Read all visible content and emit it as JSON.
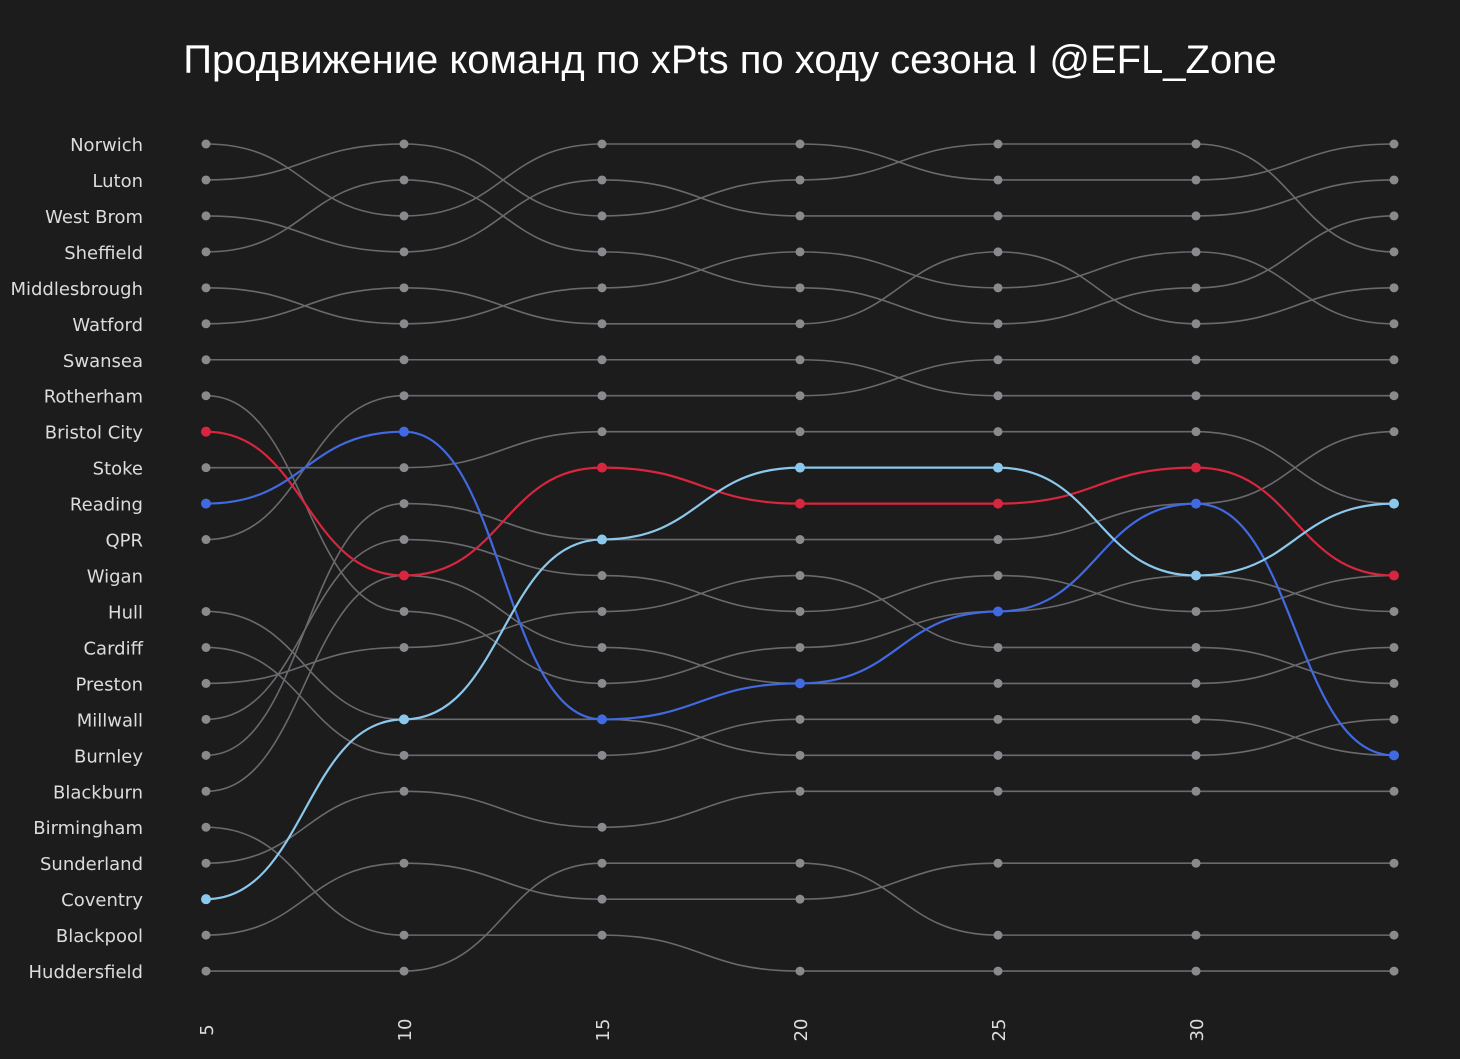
{
  "chart_data": {
    "type": "line",
    "title": "Продвижение команд по xPts по ходу сезона I @EFL_Zone",
    "x": [
      5,
      10,
      15,
      20,
      25,
      30,
      34
    ],
    "x_tick_labels": [
      "5",
      "10",
      "15",
      "20",
      "25",
      "30"
    ],
    "y_category_labels": [
      "Norwich",
      "Luton",
      "West Brom",
      "Sheffield",
      "Middlesbrough",
      "Watford",
      "Swansea",
      "Rotherham",
      "Bristol City",
      "Stoke",
      "Reading",
      "QPR",
      "Wigan",
      "Hull",
      "Cardiff",
      "Preston",
      "Millwall",
      "Burnley",
      "Blackburn",
      "Birmingham",
      "Sunderland",
      "Coventry",
      "Blackpool",
      "Huddersfield"
    ],
    "y_inverted": true,
    "grid": false,
    "background_rank_lines": [
      {
        "name": "Norwich",
        "values": [
          1,
          3,
          1,
          1,
          2,
          2,
          1
        ]
      },
      {
        "name": "Luton",
        "values": [
          2,
          1,
          3,
          2,
          1,
          1,
          4
        ]
      },
      {
        "name": "West Brom",
        "values": [
          3,
          4,
          2,
          3,
          3,
          3,
          2
        ]
      },
      {
        "name": "Sheffield",
        "values": [
          4,
          2,
          4,
          5,
          6,
          5,
          3
        ]
      },
      {
        "name": "Middlesbrough",
        "values": [
          5,
          6,
          5,
          4,
          5,
          4,
          6
        ]
      },
      {
        "name": "Watford",
        "values": [
          6,
          5,
          6,
          6,
          4,
          6,
          5
        ]
      },
      {
        "name": "Swansea",
        "values": [
          7,
          7,
          7,
          7,
          8,
          8,
          8
        ]
      },
      {
        "name": "Rotherham",
        "values": [
          8,
          14,
          16,
          15,
          14,
          13,
          14
        ]
      },
      {
        "name": "Stoke",
        "values": [
          10,
          10,
          9,
          9,
          9,
          9,
          11
        ]
      },
      {
        "name": "QPR",
        "values": [
          12,
          8,
          8,
          8,
          7,
          7,
          7
        ]
      },
      {
        "name": "Hull",
        "values": [
          14,
          17,
          17,
          18,
          18,
          18,
          17
        ]
      },
      {
        "name": "Cardiff",
        "values": [
          15,
          18,
          18,
          17,
          17,
          17,
          18
        ]
      },
      {
        "name": "Preston",
        "values": [
          16,
          15,
          14,
          13,
          15,
          15,
          16
        ]
      },
      {
        "name": "Millwall",
        "values": [
          17,
          12,
          13,
          14,
          13,
          14,
          13
        ]
      },
      {
        "name": "Burnley",
        "values": [
          18,
          11,
          12,
          12,
          12,
          11,
          9
        ]
      },
      {
        "name": "Blackburn",
        "values": [
          19,
          13,
          15,
          16,
          16,
          16,
          15
        ]
      },
      {
        "name": "Birmingham",
        "values": [
          20,
          23,
          23,
          24,
          24,
          24,
          24
        ]
      },
      {
        "name": "Sunderland",
        "values": [
          21,
          19,
          20,
          19,
          19,
          19,
          19
        ]
      },
      {
        "name": "Blackpool",
        "values": [
          23,
          21,
          22,
          22,
          21,
          21,
          21
        ]
      },
      {
        "name": "Huddersfield",
        "values": [
          24,
          24,
          21,
          21,
          23,
          23,
          23
        ]
      }
    ],
    "highlighted_lines": [
      {
        "name": "Bristol City",
        "color": "#d7263d",
        "values": [
          9,
          13,
          10,
          11,
          11,
          10,
          13
        ]
      },
      {
        "name": "Reading",
        "color": "#4169e1",
        "values": [
          11,
          9,
          17,
          16,
          14,
          11,
          18
        ]
      },
      {
        "name": "Coventry",
        "color": "#8cc8ec",
        "values": [
          22,
          17,
          12,
          10,
          10,
          13,
          11
        ]
      }
    ],
    "background_line_color": "#6a6a6e",
    "node_color": "#8a8a8e"
  }
}
